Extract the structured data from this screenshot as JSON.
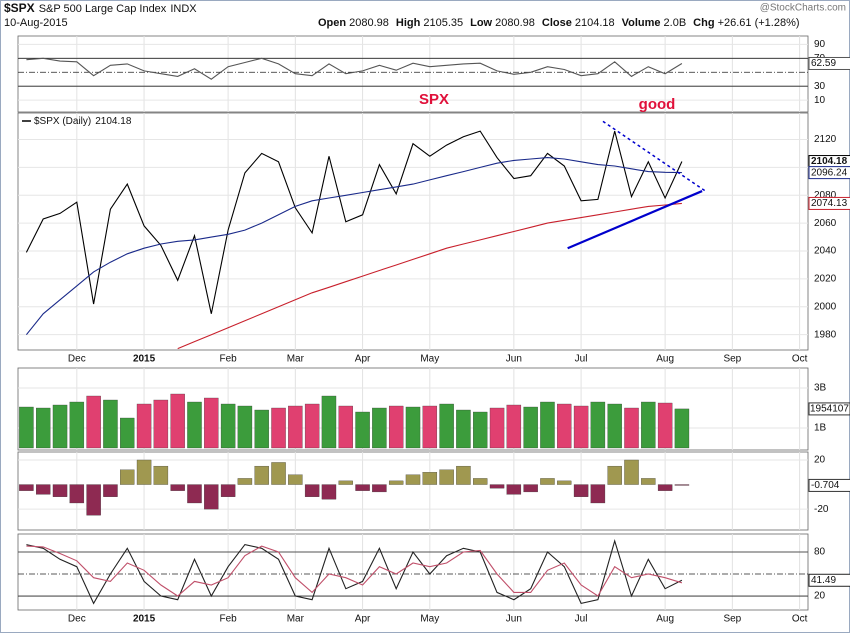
{
  "header": {
    "symbol": "$SPX",
    "name": "S&P 500 Large Cap Index",
    "exchange": "INDX",
    "date": "10-Aug-2015",
    "source": "@StockCharts.com",
    "stats": [
      {
        "label": "Open",
        "value": "2080.98"
      },
      {
        "label": "High",
        "value": "2105.35"
      },
      {
        "label": "Low",
        "value": "2080.98"
      },
      {
        "label": "Close",
        "value": "2104.18"
      },
      {
        "label": "Volume",
        "value": "2.0B"
      },
      {
        "label": "Chg",
        "value": "+26.61 (+1.28%)"
      }
    ]
  },
  "chart_data": [
    {
      "type": "line",
      "ylim": [
        -7,
        102
      ],
      "yticks": [
        10,
        30,
        70,
        90
      ],
      "reference_lines": [
        {
          "value": 30,
          "dashed": false
        },
        {
          "value": 50,
          "dashed": true
        },
        {
          "value": 70,
          "dashed": false
        }
      ],
      "series": [
        {
          "color": "#555555",
          "label_last": true,
          "values": [
            68,
            70,
            66,
            65,
            45,
            60,
            62,
            52,
            48,
            44,
            55,
            40,
            58,
            64,
            70,
            62,
            48,
            45,
            62,
            48,
            52,
            60,
            53,
            63,
            58,
            60,
            62,
            63,
            52,
            47,
            50,
            58,
            54,
            45,
            48,
            65,
            44,
            58,
            48,
            62.59,
            null,
            null,
            null,
            null,
            null,
            null,
            null
          ]
        }
      ],
      "annotations": [
        {
          "text": "SPX",
          "color": "#e0103a"
        },
        {
          "text": "good",
          "color": "#e0103a"
        }
      ]
    },
    {
      "type": "line",
      "ylim": [
        1969,
        2139
      ],
      "yticks": [
        1980,
        2000,
        2020,
        2040,
        2060,
        2080,
        2100,
        2120
      ],
      "grid": true,
      "categories": [
        null,
        null,
        null,
        "Dec",
        null,
        null,
        null,
        "2015",
        null,
        null,
        null,
        null,
        "Feb",
        null,
        null,
        null,
        "Mar",
        null,
        null,
        null,
        "Apr",
        null,
        null,
        null,
        "May",
        null,
        null,
        null,
        null,
        "Jun",
        null,
        null,
        null,
        "Jul",
        null,
        null,
        null,
        null,
        "Aug",
        null,
        null,
        null,
        "Sep",
        null,
        null,
        null,
        "Oct"
      ],
      "series": [
        {
          "name": "$SPX (Daily)",
          "color": "#000000",
          "label_last": true,
          "values": [
            2039,
            2063,
            2067,
            2075,
            2002,
            2070,
            2088,
            2058,
            2044,
            2019,
            2051,
            1995,
            2055,
            2096,
            2110,
            2104,
            2071,
            2053,
            2108,
            2061,
            2066,
            2102,
            2081,
            2117,
            2108,
            2116,
            2122,
            2126,
            2107,
            2092,
            2094,
            2110,
            2101,
            2076,
            2077,
            2126,
            2079,
            2104,
            2078,
            2104.18,
            null,
            null,
            null,
            null,
            null,
            null,
            null
          ]
        },
        {
          "color": "#1a2a8a",
          "label_last": true,
          "values": [
            1980,
            1995,
            2005,
            2015,
            2025,
            2032,
            2038,
            2042,
            2045,
            2047,
            2048,
            2050,
            2052,
            2055,
            2060,
            2066,
            2072,
            2076,
            2078,
            2080,
            2082,
            2084,
            2086,
            2088,
            2091,
            2094,
            2097,
            2100,
            2103,
            2105,
            2106,
            2107,
            2106,
            2104,
            2102,
            2101,
            2099,
            2097,
            2096.5,
            2096.24,
            null,
            null,
            null,
            null,
            null,
            null,
            null
          ]
        },
        {
          "color": "#c8202c",
          "label_last": true,
          "values": [
            null,
            null,
            null,
            null,
            null,
            null,
            null,
            null,
            null,
            1970,
            1975,
            1980,
            1985,
            1990,
            1995,
            2000,
            2005,
            2010,
            2014,
            2018,
            2022,
            2026,
            2030,
            2034,
            2038,
            2042,
            2045,
            2048,
            2051,
            2054,
            2057,
            2060,
            2062,
            2064,
            2066,
            2068,
            2070,
            2072,
            2073,
            2074.13,
            null,
            null,
            null,
            null,
            null,
            null,
            null
          ]
        }
      ],
      "trendlines": [
        {
          "x": [
            32.2,
            40.2
          ],
          "values": [
            2042,
            2083
          ],
          "color": "#0000cc",
          "dashed": false
        },
        {
          "x": [
            34.3,
            40.4
          ],
          "values": [
            2133,
            2083
          ],
          "color": "#0000cc",
          "dashed": true
        }
      ]
    },
    {
      "type": "bar",
      "ylim": [
        -100000000,
        4000000000
      ],
      "yticks": [
        {
          "value": 1000000000,
          "label": "1B"
        },
        {
          "value": 3000000000,
          "label": "3B"
        }
      ],
      "up_color": "#3c9c3c",
      "down_color": "#e04070",
      "current_value_text": "1954107",
      "values": [
        2050000000,
        2000000000,
        2150000000,
        2300000000,
        2600000000,
        2400000000,
        1500000000,
        2200000000,
        2400000000,
        2700000000,
        2300000000,
        2500000000,
        2200000000,
        2100000000,
        1900000000,
        2000000000,
        2100000000,
        2200000000,
        2600000000,
        2100000000,
        1800000000,
        2000000000,
        2100000000,
        2050000000,
        2100000000,
        2200000000,
        1900000000,
        1800000000,
        2000000000,
        2150000000,
        2050000000,
        2300000000,
        2200000000,
        2100000000,
        2300000000,
        2200000000,
        2000000000,
        2300000000,
        2250000000,
        1954107000,
        null,
        null,
        null,
        null,
        null,
        null,
        null
      ]
    },
    {
      "type": "bar",
      "ylim": [
        -37,
        26.5
      ],
      "yticks": [
        -20,
        20
      ],
      "positive_color": "#a09850",
      "negative_color": "#8e2a52",
      "label_last": true,
      "values": [
        -5,
        -8,
        -10,
        -15,
        -25,
        -10,
        12,
        20,
        15,
        -5,
        -15,
        -20,
        -10,
        5,
        15,
        18,
        8,
        -10,
        -12,
        3,
        -5,
        -6,
        3,
        8,
        10,
        12,
        15,
        5,
        -3,
        -8,
        -6,
        5,
        3,
        -10,
        -15,
        15,
        20,
        5,
        -5,
        -0.704,
        null,
        null,
        null,
        null,
        null,
        null,
        null
      ]
    },
    {
      "type": "line",
      "ylim": [
        1,
        104.5
      ],
      "yticks": [
        20,
        80
      ],
      "reference_lines": [
        {
          "value": 20,
          "dashed": false
        },
        {
          "value": 50,
          "dashed": true
        },
        {
          "value": 80,
          "dashed": false
        }
      ],
      "categories": [
        null,
        null,
        null,
        "Dec",
        null,
        null,
        null,
        "2015",
        null,
        null,
        null,
        null,
        "Feb",
        null,
        null,
        null,
        "Mar",
        null,
        null,
        null,
        "Apr",
        null,
        null,
        null,
        "May",
        null,
        null,
        null,
        null,
        "Jun",
        null,
        null,
        null,
        "Jul",
        null,
        null,
        null,
        null,
        "Aug",
        null,
        null,
        null,
        "Sep",
        null,
        null,
        null,
        "Oct"
      ],
      "series": [
        {
          "color": "#222222",
          "label_last": true,
          "values": [
            90,
            85,
            70,
            60,
            10,
            50,
            85,
            40,
            20,
            15,
            70,
            20,
            60,
            90,
            85,
            70,
            20,
            15,
            85,
            30,
            40,
            85,
            30,
            80,
            50,
            75,
            85,
            80,
            25,
            15,
            30,
            80,
            60,
            10,
            15,
            95,
            20,
            70,
            30,
            41.49,
            null,
            null,
            null,
            null,
            null,
            null,
            null
          ]
        },
        {
          "color": "#c0506a",
          "values": [
            88,
            87,
            78,
            68,
            45,
            40,
            65,
            55,
            35,
            20,
            40,
            35,
            45,
            75,
            88,
            80,
            45,
            25,
            50,
            45,
            35,
            60,
            50,
            65,
            60,
            65,
            80,
            82,
            50,
            25,
            25,
            55,
            65,
            35,
            20,
            60,
            45,
            50,
            45,
            38,
            null,
            null,
            null,
            null,
            null,
            null,
            null
          ]
        }
      ]
    }
  ]
}
